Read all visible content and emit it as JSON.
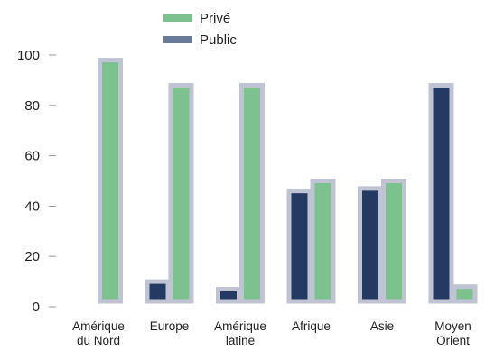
{
  "chart_data": {
    "type": "bar",
    "title": "",
    "xlabel": "",
    "ylabel": "",
    "ylim": [
      0,
      100
    ],
    "yticks": [
      0,
      20,
      40,
      60,
      80,
      100
    ],
    "grid": false,
    "legend_position": "top",
    "categories": [
      [
        "Amérique",
        "du Nord"
      ],
      [
        "Europe"
      ],
      [
        "Amérique",
        "latine"
      ],
      [
        "Afrique"
      ],
      [
        "Asie"
      ],
      [
        "Moyen",
        "Orient"
      ]
    ],
    "series": [
      {
        "name": "Public",
        "color": "#243a63",
        "values": [
          0,
          10,
          7,
          46,
          47,
          88
        ]
      },
      {
        "name": "Privé",
        "color": "#7dc18f",
        "values": [
          98,
          88,
          88,
          50,
          50,
          8
        ]
      }
    ],
    "legend_order": [
      "Privé",
      "Public"
    ],
    "border_color": "#c0c3d3",
    "legend_public_color": "#6a7a99"
  }
}
